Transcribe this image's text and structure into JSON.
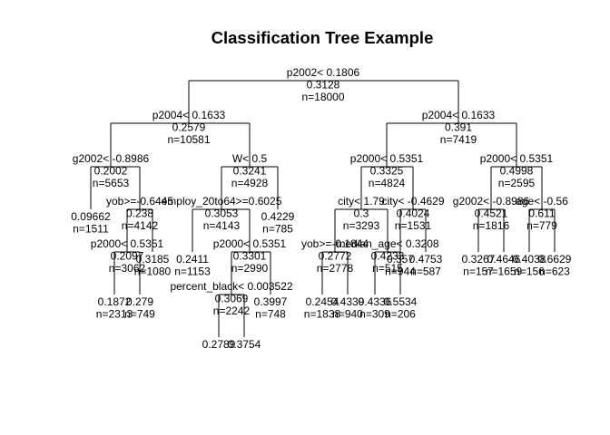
{
  "chart_data": {
    "type": "tree",
    "title": "Classification Tree Example",
    "nodes": [
      {
        "id": "root",
        "parent": null,
        "lines": [
          "p2002< 0.1806",
          "0.3128",
          "n=18000"
        ]
      },
      {
        "id": "L",
        "parent": "root",
        "lines": [
          "p2004< 0.1633",
          "0.2579",
          "n=10581"
        ]
      },
      {
        "id": "R",
        "parent": "root",
        "lines": [
          "p2004< 0.1633",
          "0.391",
          "n=7419"
        ]
      },
      {
        "id": "LL",
        "parent": "L",
        "lines": [
          "g2002< -0.8986",
          "0.2002",
          "n=5653"
        ]
      },
      {
        "id": "LR",
        "parent": "L",
        "lines": [
          "W< 0.5",
          "0.3241",
          "n=4928"
        ]
      },
      {
        "id": "RL",
        "parent": "R",
        "lines": [
          "p2000< 0.5351",
          "0.3325",
          "n=4824"
        ]
      },
      {
        "id": "RR",
        "parent": "R",
        "lines": [
          "p2000< 0.5351",
          "0.4998",
          "n=2595"
        ]
      },
      {
        "id": "LLL",
        "parent": "LL",
        "lines": [
          "0.09662",
          "n=1511"
        ]
      },
      {
        "id": "LLR",
        "parent": "LL",
        "lines": [
          "yob>=-0.6445",
          "0.238",
          "n=4142"
        ]
      },
      {
        "id": "LRL",
        "parent": "LR",
        "lines": [
          "employ_20to64>=0.6025",
          "0.3053",
          "n=4143"
        ]
      },
      {
        "id": "LRR",
        "parent": "LR",
        "lines": [
          "0.4229",
          "n=785"
        ]
      },
      {
        "id": "RLL",
        "parent": "RL",
        "lines": [
          "city< 1.79",
          "0.3",
          "n=3293"
        ]
      },
      {
        "id": "RLR",
        "parent": "RL",
        "lines": [
          "city< -0.4629",
          "0.4024",
          "n=1531"
        ]
      },
      {
        "id": "RRL",
        "parent": "RR",
        "lines": [
          "g2002< -0.8986",
          "0.4521",
          "n=1816"
        ]
      },
      {
        "id": "RRR",
        "parent": "RR",
        "lines": [
          "age< -0.56",
          "0.611",
          "n=779"
        ]
      },
      {
        "id": "LLRL",
        "parent": "LLR",
        "lines": [
          "p2000< 0.5351",
          "0.2097",
          "n=3062"
        ]
      },
      {
        "id": "LLRR",
        "parent": "LLR",
        "lines": [
          "0.3185",
          "n=1080"
        ]
      },
      {
        "id": "LRLL",
        "parent": "LRL",
        "lines": [
          "0.2411",
          "n=1153"
        ]
      },
      {
        "id": "LRLR",
        "parent": "LRL",
        "lines": [
          "p2000< 0.5351",
          "0.3301",
          "n=2990"
        ]
      },
      {
        "id": "RLLL",
        "parent": "RLL",
        "lines": [
          "yob>=-0.1844",
          "0.2772",
          "n=2778"
        ]
      },
      {
        "id": "RLLR",
        "parent": "RLL",
        "lines": [
          "median_age< 0.3208",
          "0.4233",
          "n=515"
        ]
      },
      {
        "id": "RLRL",
        "parent": "RLR",
        "lines": [
          "0.357",
          "n=944"
        ]
      },
      {
        "id": "RLRR",
        "parent": "RLR",
        "lines": [
          "0.4753",
          "n=587"
        ]
      },
      {
        "id": "RRLL",
        "parent": "RRL",
        "lines": [
          "0.3267",
          "n=157"
        ]
      },
      {
        "id": "RRLR",
        "parent": "RRL",
        "lines": [
          "0.4646",
          "n=1659"
        ]
      },
      {
        "id": "RRRL",
        "parent": "RRR",
        "lines": [
          "0.4038",
          "n=156"
        ]
      },
      {
        "id": "RRRR",
        "parent": "RRR",
        "lines": [
          "0.6629",
          "n=623"
        ]
      },
      {
        "id": "LLRLL",
        "parent": "LLRL",
        "lines": [
          "0.1872",
          "n=2313"
        ]
      },
      {
        "id": "LLRLR",
        "parent": "LLRL",
        "lines": [
          "0.279",
          "n=749"
        ]
      },
      {
        "id": "LRLRL",
        "parent": "LRLR",
        "lines": [
          "percent_black< 0.003522",
          "0.3069",
          "n=2242"
        ]
      },
      {
        "id": "LRLRR",
        "parent": "LRLR",
        "lines": [
          "0.3997",
          "n=748"
        ]
      },
      {
        "id": "RLLLL",
        "parent": "RLLL",
        "lines": [
          "0.2454",
          "n=1838"
        ]
      },
      {
        "id": "RLLLR",
        "parent": "RLLL",
        "lines": [
          "0.4339",
          "n=940"
        ]
      },
      {
        "id": "RLLRL",
        "parent": "RLLR",
        "lines": [
          "0.4336",
          "n=309"
        ]
      },
      {
        "id": "RLLRR",
        "parent": "RLLR",
        "lines": [
          "0.5534",
          "n=206"
        ]
      },
      {
        "id": "LRLRLL",
        "parent": "LRLRL",
        "lines": [
          "0.2789"
        ]
      },
      {
        "id": "LRLRLR",
        "parent": "LRLRL",
        "lines": [
          "0.3754"
        ]
      }
    ]
  }
}
